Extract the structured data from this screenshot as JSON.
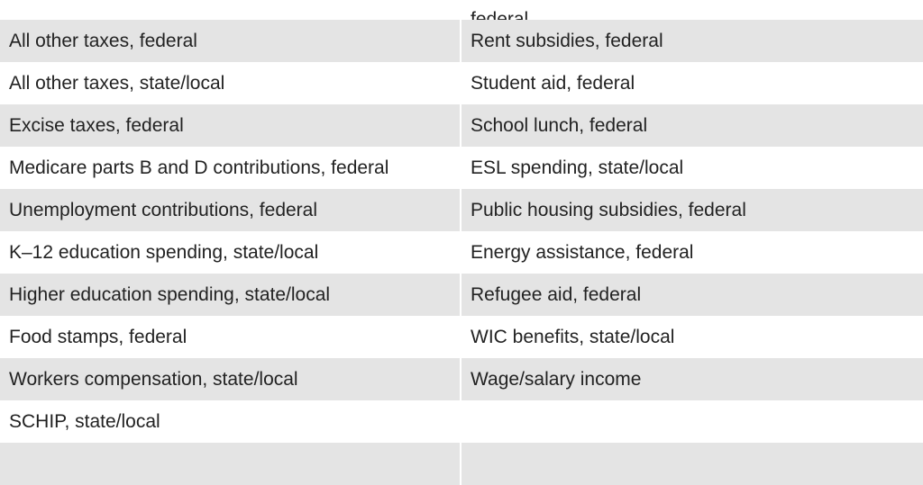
{
  "top_row": {
    "left": "",
    "right": "federal"
  },
  "rows": [
    {
      "left": "All other taxes, federal",
      "right": "Rent subsidies, federal"
    },
    {
      "left": "All other taxes, state/local",
      "right": "Student aid, federal"
    },
    {
      "left": "Excise taxes, federal",
      "right": "School lunch, federal"
    },
    {
      "left": "Medicare parts B and D contributions, federal",
      "right": "ESL spending, state/local"
    },
    {
      "left": "Unemployment contributions, federal",
      "right": "Public housing subsidies, federal"
    },
    {
      "left": "K–12 education spending, state/local",
      "right": "Energy assistance, federal"
    },
    {
      "left": "Higher education spending, state/local",
      "right": "Refugee aid, federal"
    },
    {
      "left": "Food stamps, federal",
      "right": "WIC benefits, state/local"
    },
    {
      "left": "Workers compensation, state/local",
      "right": "Wage/salary income"
    },
    {
      "left": "SCHIP, state/local",
      "right": ""
    },
    {
      "left": "",
      "right": ""
    }
  ]
}
